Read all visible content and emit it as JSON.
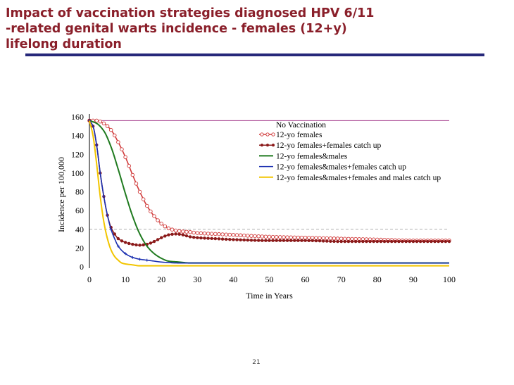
{
  "slide": {
    "title": "Impact of vaccination strategies diagnosed HPV 6/11\n-related genital warts incidence - females (12+y)\nlifelong duration",
    "page_number": "21"
  },
  "chart_data": {
    "type": "line",
    "xlabel": "Time in Years",
    "ylabel": "Incidence per 100,000",
    "xlim": [
      0,
      100
    ],
    "ylim": [
      0,
      160
    ],
    "xticks": [
      0,
      10,
      20,
      30,
      40,
      50,
      60,
      70,
      80,
      90,
      100
    ],
    "yticks": [
      0,
      20,
      40,
      60,
      80,
      100,
      120,
      140,
      160
    ],
    "grid": false,
    "legend_position": "top-right",
    "reference_lines": [
      {
        "name": "No Vaccination",
        "y": 156,
        "color": "#a23a8c",
        "style": "solid"
      },
      {
        "y": 40,
        "color": "#b0b0b0",
        "style": "dashed"
      }
    ],
    "series": [
      {
        "name": "12-yo females",
        "color": "#d03a3a",
        "marker": "open-circle",
        "x": [
          0,
          2,
          4,
          6,
          8,
          10,
          12,
          14,
          16,
          18,
          20,
          22,
          25,
          28,
          30,
          35,
          40,
          50,
          60,
          70,
          80,
          90,
          100
        ],
        "y": [
          156,
          156,
          153,
          146,
          133,
          117,
          98,
          80,
          65,
          54,
          46,
          41,
          38,
          37,
          36,
          35,
          34,
          32,
          31,
          30,
          29,
          28,
          28
        ]
      },
      {
        "name": "12-yo females+females catch up",
        "color": "#8b1a1a",
        "marker": "filled-circle",
        "x": [
          0,
          1,
          2,
          3,
          4,
          5,
          6,
          7,
          8,
          10,
          12,
          14,
          16,
          18,
          20,
          22,
          24,
          26,
          28,
          30,
          35,
          40,
          50,
          60,
          70,
          80,
          90,
          100
        ],
        "y": [
          156,
          150,
          130,
          100,
          75,
          55,
          42,
          35,
          30,
          26,
          24,
          23,
          24,
          27,
          31,
          34,
          35,
          34,
          32,
          31,
          30,
          29,
          28,
          28,
          27,
          27,
          27,
          27
        ]
      },
      {
        "name": "12-yo females&males",
        "color": "#1f7a1f",
        "marker": "none",
        "x": [
          0,
          2,
          4,
          6,
          8,
          10,
          12,
          14,
          16,
          18,
          20,
          22,
          25,
          28,
          30,
          40,
          60,
          80,
          100
        ],
        "y": [
          156,
          153,
          145,
          128,
          104,
          78,
          54,
          35,
          22,
          14,
          9,
          6,
          5,
          4,
          4,
          4,
          4,
          4,
          4
        ]
      },
      {
        "name": "12-yo females&males+females catch up",
        "color": "#1a2fb0",
        "marker": "small-cross",
        "x": [
          0,
          1,
          2,
          3,
          4,
          5,
          6,
          7,
          8,
          10,
          12,
          14,
          16,
          18,
          20,
          25,
          30,
          40,
          60,
          80,
          100
        ],
        "y": [
          156,
          150,
          130,
          100,
          75,
          55,
          40,
          30,
          22,
          14,
          10,
          8,
          7,
          6,
          5,
          4,
          4,
          4,
          4,
          4,
          4
        ]
      },
      {
        "name": "12-yo females&males+females and males catch up",
        "color": "#f2c500",
        "marker": "none",
        "x": [
          0,
          1,
          2,
          3,
          4,
          5,
          6,
          7,
          8,
          9,
          10,
          12,
          14,
          16,
          18,
          20,
          25,
          30,
          40,
          60,
          80,
          100
        ],
        "y": [
          156,
          140,
          110,
          75,
          48,
          30,
          18,
          11,
          7,
          4,
          3,
          2,
          1,
          1,
          1,
          1,
          1,
          1,
          1,
          1,
          1,
          1
        ]
      }
    ]
  }
}
